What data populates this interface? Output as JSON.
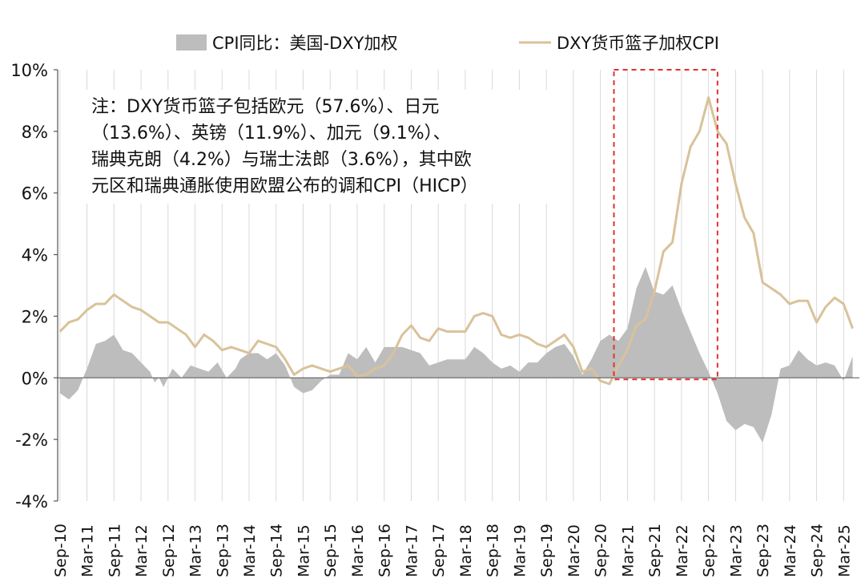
{
  "chart_data": {
    "type": "area+line",
    "note_lines": [
      "注：DXY货币篮子包括欧元（57.6%）、日元",
      "（13.6%）、英镑（11.9%）、加元（9.1%）、",
      "瑞典克朗（4.2%）与瑞士法郎（3.6%），其中欧",
      "元区和瑞典通胀使用欧盟公布的调和CPI（HICP）"
    ],
    "ylim": [
      -4,
      10
    ],
    "yticks": [
      -4,
      -2,
      0,
      2,
      4,
      6,
      8,
      10
    ],
    "ytick_labels": [
      "-4%",
      "-2%",
      "0%",
      "2%",
      "4%",
      "6%",
      "8%",
      "10%"
    ],
    "xtick_labels": [
      "Sep-10",
      "Mar-11",
      "Sep-11",
      "Mar-12",
      "Sep-12",
      "Mar-13",
      "Sep-13",
      "Mar-14",
      "Sep-14",
      "Mar-15",
      "Sep-15",
      "Mar-16",
      "Sep-16",
      "Mar-17",
      "Sep-17",
      "Mar-18",
      "Sep-18",
      "Mar-19",
      "Sep-19",
      "Mar-20",
      "Sep-20",
      "Mar-21",
      "Sep-21",
      "Mar-22",
      "Sep-22",
      "Mar-23",
      "Sep-23",
      "Mar-24",
      "Sep-24",
      "Mar-25"
    ],
    "x_range": [
      "2010-09",
      "2025-06"
    ],
    "highlight_range": [
      "2020-12",
      "2022-11"
    ],
    "grid": "vertical",
    "series": [
      {
        "name": "CPI同比：美国-DXY加权",
        "type": "area",
        "color": "#bdbdbd",
        "points": [
          [
            "2010-09",
            -0.5
          ],
          [
            "2010-11",
            -0.7
          ],
          [
            "2011-01",
            -0.4
          ],
          [
            "2011-03",
            0.3
          ],
          [
            "2011-05",
            1.1
          ],
          [
            "2011-07",
            1.2
          ],
          [
            "2011-09",
            1.4
          ],
          [
            "2011-11",
            0.9
          ],
          [
            "2012-01",
            0.8
          ],
          [
            "2012-03",
            0.5
          ],
          [
            "2012-05",
            0.2
          ],
          [
            "2012-06",
            -0.15
          ],
          [
            "2012-07",
            0.0
          ],
          [
            "2012-08",
            -0.3
          ],
          [
            "2012-09",
            0.0
          ],
          [
            "2012-10",
            0.3
          ],
          [
            "2012-12",
            0.0
          ],
          [
            "2013-02",
            0.4
          ],
          [
            "2013-04",
            0.3
          ],
          [
            "2013-06",
            0.2
          ],
          [
            "2013-08",
            0.5
          ],
          [
            "2013-10",
            0.0
          ],
          [
            "2013-12",
            0.3
          ],
          [
            "2014-01",
            0.6
          ],
          [
            "2014-03",
            0.8
          ],
          [
            "2014-05",
            0.8
          ],
          [
            "2014-07",
            0.6
          ],
          [
            "2014-09",
            0.8
          ],
          [
            "2014-11",
            0.4
          ],
          [
            "2015-01",
            -0.3
          ],
          [
            "2015-03",
            -0.5
          ],
          [
            "2015-05",
            -0.4
          ],
          [
            "2015-07",
            -0.1
          ],
          [
            "2015-09",
            0.1
          ],
          [
            "2015-11",
            0.1
          ],
          [
            "2016-01",
            0.8
          ],
          [
            "2016-03",
            0.6
          ],
          [
            "2016-05",
            1.0
          ],
          [
            "2016-07",
            0.5
          ],
          [
            "2016-09",
            1.0
          ],
          [
            "2016-11",
            1.0
          ],
          [
            "2017-01",
            1.0
          ],
          [
            "2017-03",
            0.9
          ],
          [
            "2017-05",
            0.8
          ],
          [
            "2017-07",
            0.4
          ],
          [
            "2017-09",
            0.5
          ],
          [
            "2017-11",
            0.6
          ],
          [
            "2018-01",
            0.6
          ],
          [
            "2018-03",
            0.6
          ],
          [
            "2018-05",
            1.0
          ],
          [
            "2018-07",
            0.8
          ],
          [
            "2018-09",
            0.5
          ],
          [
            "2018-11",
            0.3
          ],
          [
            "2019-01",
            0.4
          ],
          [
            "2019-03",
            0.2
          ],
          [
            "2019-05",
            0.5
          ],
          [
            "2019-07",
            0.5
          ],
          [
            "2019-09",
            0.8
          ],
          [
            "2019-11",
            1.0
          ],
          [
            "2020-01",
            1.1
          ],
          [
            "2020-03",
            0.7
          ],
          [
            "2020-05",
            0.1
          ],
          [
            "2020-07",
            0.6
          ],
          [
            "2020-09",
            1.2
          ],
          [
            "2020-11",
            1.4
          ],
          [
            "2021-01",
            1.2
          ],
          [
            "2021-03",
            1.6
          ],
          [
            "2021-05",
            2.9
          ],
          [
            "2021-07",
            3.6
          ],
          [
            "2021-09",
            2.8
          ],
          [
            "2021-11",
            2.7
          ],
          [
            "2022-01",
            3.0
          ],
          [
            "2022-03",
            2.2
          ],
          [
            "2022-05",
            1.5
          ],
          [
            "2022-07",
            0.8
          ],
          [
            "2022-09",
            0.2
          ],
          [
            "2022-11",
            -0.5
          ],
          [
            "2023-01",
            -1.4
          ],
          [
            "2023-03",
            -1.7
          ],
          [
            "2023-05",
            -1.5
          ],
          [
            "2023-07",
            -1.6
          ],
          [
            "2023-09",
            -2.1
          ],
          [
            "2023-11",
            -1.2
          ],
          [
            "2024-01",
            0.3
          ],
          [
            "2024-03",
            0.4
          ],
          [
            "2024-05",
            0.9
          ],
          [
            "2024-07",
            0.6
          ],
          [
            "2024-09",
            0.4
          ],
          [
            "2024-11",
            0.5
          ],
          [
            "2025-01",
            0.4
          ],
          [
            "2025-03",
            -0.1
          ],
          [
            "2025-05",
            0.7
          ]
        ]
      },
      {
        "name": "DXY货币篮子加权CPI",
        "type": "line",
        "color": "#d9c29a",
        "points": [
          [
            "2010-09",
            1.5
          ],
          [
            "2010-11",
            1.8
          ],
          [
            "2011-01",
            1.9
          ],
          [
            "2011-03",
            2.2
          ],
          [
            "2011-05",
            2.4
          ],
          [
            "2011-07",
            2.4
          ],
          [
            "2011-09",
            2.7
          ],
          [
            "2011-11",
            2.5
          ],
          [
            "2012-01",
            2.3
          ],
          [
            "2012-03",
            2.2
          ],
          [
            "2012-05",
            2.0
          ],
          [
            "2012-07",
            1.8
          ],
          [
            "2012-09",
            1.8
          ],
          [
            "2012-11",
            1.6
          ],
          [
            "2013-01",
            1.4
          ],
          [
            "2013-03",
            1.0
          ],
          [
            "2013-05",
            1.4
          ],
          [
            "2013-07",
            1.2
          ],
          [
            "2013-09",
            0.9
          ],
          [
            "2013-11",
            1.0
          ],
          [
            "2014-01",
            0.9
          ],
          [
            "2014-03",
            0.8
          ],
          [
            "2014-05",
            1.2
          ],
          [
            "2014-07",
            1.1
          ],
          [
            "2014-09",
            1.0
          ],
          [
            "2014-11",
            0.6
          ],
          [
            "2015-01",
            0.1
          ],
          [
            "2015-03",
            0.3
          ],
          [
            "2015-05",
            0.4
          ],
          [
            "2015-07",
            0.3
          ],
          [
            "2015-09",
            0.2
          ],
          [
            "2015-11",
            0.3
          ],
          [
            "2016-01",
            0.4
          ],
          [
            "2016-03",
            0.05
          ],
          [
            "2016-05",
            0.1
          ],
          [
            "2016-07",
            0.3
          ],
          [
            "2016-09",
            0.4
          ],
          [
            "2016-11",
            0.8
          ],
          [
            "2017-01",
            1.4
          ],
          [
            "2017-03",
            1.7
          ],
          [
            "2017-05",
            1.3
          ],
          [
            "2017-07",
            1.2
          ],
          [
            "2017-09",
            1.6
          ],
          [
            "2017-11",
            1.5
          ],
          [
            "2018-01",
            1.5
          ],
          [
            "2018-03",
            1.5
          ],
          [
            "2018-05",
            2.0
          ],
          [
            "2018-07",
            2.1
          ],
          [
            "2018-09",
            2.0
          ],
          [
            "2018-11",
            1.4
          ],
          [
            "2019-01",
            1.3
          ],
          [
            "2019-03",
            1.4
          ],
          [
            "2019-05",
            1.3
          ],
          [
            "2019-07",
            1.1
          ],
          [
            "2019-09",
            1.0
          ],
          [
            "2019-11",
            1.2
          ],
          [
            "2020-01",
            1.4
          ],
          [
            "2020-03",
            1.0
          ],
          [
            "2020-05",
            0.2
          ],
          [
            "2020-07",
            0.3
          ],
          [
            "2020-09",
            -0.1
          ],
          [
            "2020-11",
            -0.2
          ],
          [
            "2021-01",
            0.4
          ],
          [
            "2021-03",
            0.9
          ],
          [
            "2021-05",
            1.7
          ],
          [
            "2021-07",
            1.9
          ],
          [
            "2021-09",
            2.8
          ],
          [
            "2021-11",
            4.1
          ],
          [
            "2022-01",
            4.4
          ],
          [
            "2022-03",
            6.3
          ],
          [
            "2022-05",
            7.5
          ],
          [
            "2022-07",
            8.0
          ],
          [
            "2022-09",
            9.1
          ],
          [
            "2022-11",
            8.0
          ],
          [
            "2023-01",
            7.6
          ],
          [
            "2023-03",
            6.3
          ],
          [
            "2023-05",
            5.2
          ],
          [
            "2023-07",
            4.7
          ],
          [
            "2023-09",
            3.1
          ],
          [
            "2023-11",
            2.9
          ],
          [
            "2024-01",
            2.7
          ],
          [
            "2024-03",
            2.4
          ],
          [
            "2024-05",
            2.5
          ],
          [
            "2024-07",
            2.5
          ],
          [
            "2024-09",
            1.8
          ],
          [
            "2024-11",
            2.3
          ],
          [
            "2025-01",
            2.6
          ],
          [
            "2025-03",
            2.4
          ],
          [
            "2025-05",
            1.6
          ]
        ]
      }
    ]
  },
  "colors": {
    "area": "#bdbdbd",
    "line": "#d9c29a",
    "highlight": "#e03030",
    "grid": "#d9d9d9",
    "axis": "#555555"
  }
}
